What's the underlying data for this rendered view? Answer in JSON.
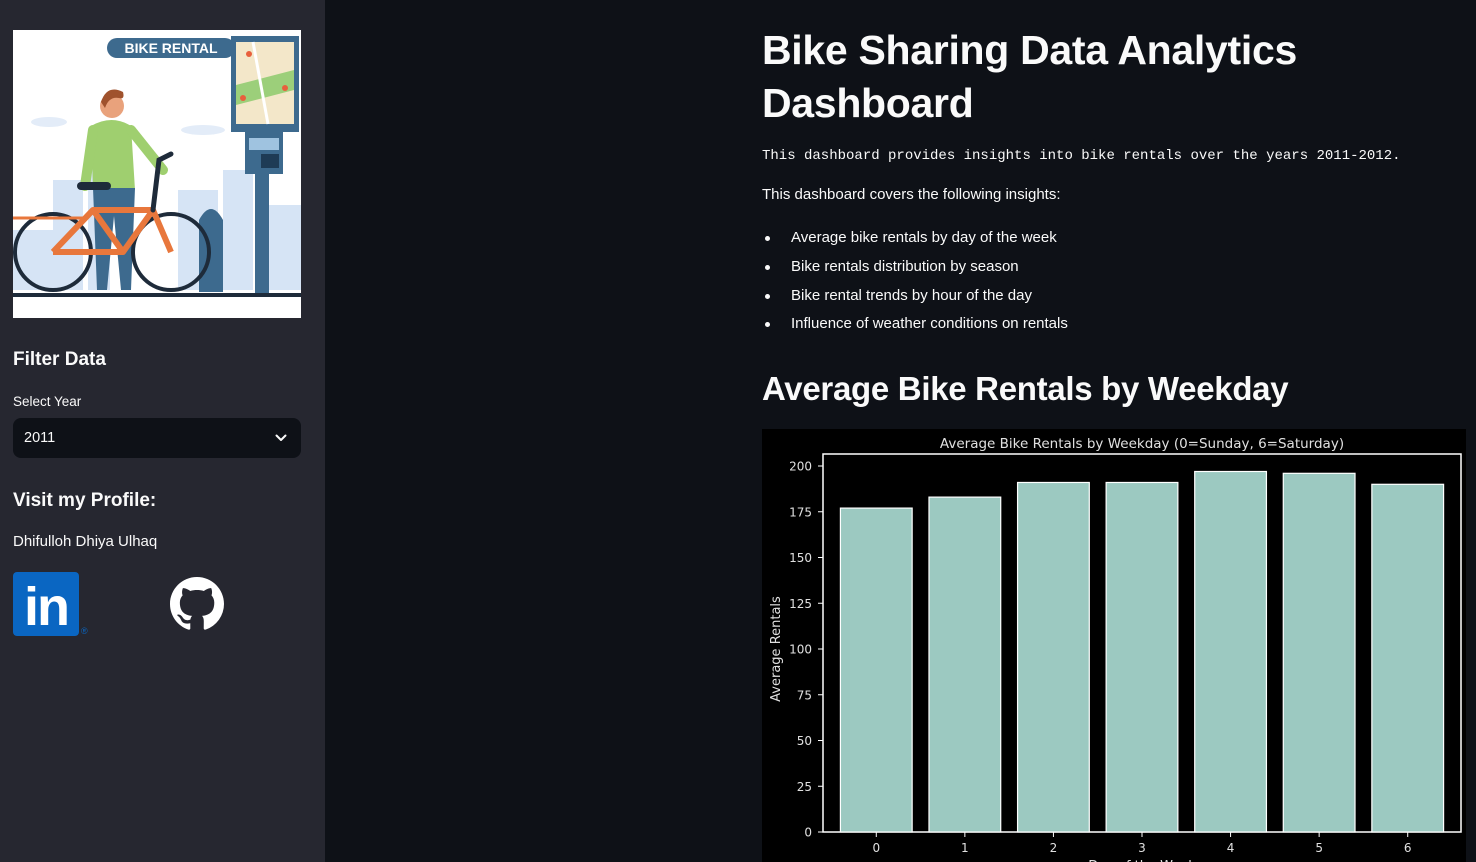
{
  "sidebar": {
    "hero_banner_text": "BIKE RENTAL",
    "filter_title": "Filter Data",
    "select_label": "Select Year",
    "selected_year": "2011",
    "profile_title": "Visit my Profile:",
    "profile_name": "Dhifulloh Dhiya Ulhaq",
    "links": [
      {
        "icon": "linkedin-icon",
        "label": "in"
      },
      {
        "icon": "github-icon"
      }
    ]
  },
  "main": {
    "title": "Bike Sharing Data Analytics Dashboard",
    "intro": "This dashboard provides insights into bike rentals over the years 2011-2012.",
    "covers": "This dashboard covers the following insights:",
    "insights": [
      "Average bike rentals by day of the week",
      "Bike rentals distribution by season",
      "Bike rental trends by hour of the day",
      "Influence of weather conditions on rentals"
    ],
    "section_title": "Average Bike Rentals by Weekday"
  },
  "colors": {
    "app_bg": "#0e1117",
    "sidebar_bg": "#262730",
    "bar_fill": "#9cc9c1",
    "linkedin": "#0a66c2"
  },
  "chart_data": {
    "type": "bar",
    "title": "Average Bike Rentals by Weekday (0=Sunday, 6=Saturday)",
    "xlabel": "Day of the Week",
    "ylabel": "Average Rentals",
    "categories": [
      "0",
      "1",
      "2",
      "3",
      "4",
      "5",
      "6"
    ],
    "values": [
      177,
      183,
      191,
      191,
      197,
      196,
      190
    ],
    "yticks": [
      0,
      25,
      50,
      75,
      100,
      125,
      150,
      175,
      200
    ],
    "ylim": [
      0,
      200
    ],
    "grid": false,
    "legend": "none"
  }
}
